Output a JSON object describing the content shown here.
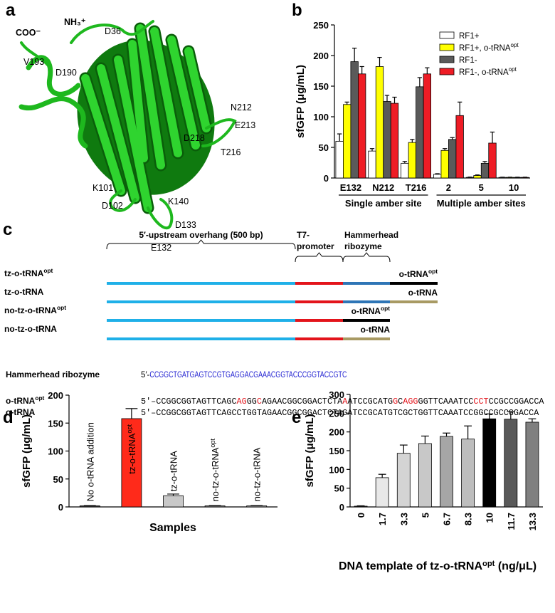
{
  "panel_labels": [
    "a",
    "b",
    "c",
    "d",
    "e"
  ],
  "panel_a": {
    "termini": [
      "COO⁻",
      "NH₃⁺"
    ],
    "residues": [
      {
        "label": "D36",
        "color": "#1c1cd0"
      },
      {
        "label": "V193",
        "color": "#e020c8"
      },
      {
        "label": "D190",
        "color": "#1c1cd0"
      },
      {
        "label": "N212",
        "color": "#d81e1e"
      },
      {
        "label": "E213",
        "color": "#1c1cd0"
      },
      {
        "label": "D218",
        "color": "#e020c8"
      },
      {
        "label": "T216",
        "color": "#d81e1e"
      },
      {
        "label": "K101",
        "color": "#1c1cd0"
      },
      {
        "label": "K140",
        "color": "#e020c8"
      },
      {
        "label": "D102",
        "color": "#e020c8"
      },
      {
        "label": "D133",
        "color": "#e020c8"
      },
      {
        "label": "E132",
        "color": "#d81e1e"
      }
    ]
  },
  "chart_data": [
    {
      "type": "bar",
      "ylabel": "sfGFP (μg/mL)",
      "categories": [
        "E132",
        "N212",
        "T216",
        "2",
        "5",
        "10"
      ],
      "group_labels": [
        "Single amber site",
        "Multiple amber sites"
      ],
      "series": [
        {
          "name": [
            "RF1+"
          ],
          "color": "#ffffff",
          "values": [
            60,
            44,
            24,
            6,
            1,
            1
          ],
          "errors": [
            12,
            4,
            3,
            1,
            0.5,
            0.3
          ]
        },
        {
          "name": [
            "RF1+, o-tRNA",
            "opt"
          ],
          "color": "#ffff00",
          "values": [
            120,
            182,
            58,
            45,
            4,
            1
          ],
          "errors": [
            4,
            15,
            5,
            3,
            1,
            0.3
          ]
        },
        {
          "name": [
            "RF1-"
          ],
          "color": "#5a5a5a",
          "values": [
            190,
            125,
            149,
            63,
            24,
            1
          ],
          "errors": [
            22,
            10,
            15,
            3,
            3,
            0.3
          ]
        },
        {
          "name": [
            "RF1-, o-tRNA",
            "opt"
          ],
          "color": "#ee1c25",
          "values": [
            170,
            122,
            170,
            102,
            57,
            1
          ],
          "errors": [
            12,
            10,
            10,
            22,
            18,
            0.3
          ]
        }
      ],
      "ylim": [
        0,
        250
      ],
      "yticks": [
        0,
        50,
        100,
        150,
        200,
        250
      ],
      "legend": "upper right"
    },
    {
      "type": "bar",
      "ylabel": "sfGFP (μg/mL)",
      "xlabel": "Samples",
      "categories": [
        [
          "No o-tRNA addition"
        ],
        [
          "tz-o-tRNA",
          "opt"
        ],
        [
          "tz-o-tRNA"
        ],
        [
          "no-tz-o-tRNA",
          "opt"
        ],
        [
          "no-tz-o-tRNA"
        ]
      ],
      "values": [
        2,
        158,
        20,
        2,
        2
      ],
      "errors": [
        0.5,
        18,
        3,
        0.5,
        0.5
      ],
      "colors": [
        "#404040",
        "#ff2a1a",
        "#c8c8c8",
        "#808080",
        "#a0a0a0"
      ],
      "ylim": [
        0,
        200
      ],
      "yticks": [
        0,
        50,
        100,
        150,
        200
      ]
    },
    {
      "type": "bar",
      "ylabel": "sfGFP (μg/mL)",
      "xlabel": [
        "DNA template of tz-o-tRNA",
        "opt",
        " (ng/μL)"
      ],
      "categories": [
        "0",
        "1.7",
        "3.3",
        "5",
        "6.7",
        "8.3",
        "10",
        "11.7",
        "13.3"
      ],
      "values": [
        2,
        78,
        143,
        169,
        188,
        181,
        235,
        234,
        226
      ],
      "errors": [
        1,
        9,
        22,
        20,
        9,
        35,
        13,
        20,
        9
      ],
      "colors": [
        "#404040",
        "#e8e8e8",
        "#d4d4d4",
        "#c8c8c8",
        "#a6a6a6",
        "#bdbdbd",
        "#000000",
        "#595959",
        "#808080"
      ],
      "ylim": [
        0,
        300
      ],
      "yticks": [
        0,
        50,
        100,
        150,
        200,
        250,
        300
      ]
    }
  ],
  "panel_c": {
    "regions": [
      {
        "label_lines": [
          "5′-upstream overhang (500 bp)"
        ],
        "color": "#1fb0e8"
      },
      {
        "label_lines": [
          "T7-",
          "promoter"
        ],
        "color": "#e3141b"
      },
      {
        "label_lines": [
          "Hammerhead",
          "ribozyme"
        ],
        "color": "#2e75b6"
      }
    ],
    "constructs": [
      {
        "name": [
          "tz-o-tRNA",
          "opt"
        ],
        "name_color": "#e3141b",
        "ribozyme": true,
        "trna": [
          "o-tRNA",
          "opt"
        ],
        "trna_color": "#000000"
      },
      {
        "name": [
          "tz-o-tRNA"
        ],
        "name_color": "#000000",
        "ribozyme": true,
        "trna": [
          "o-tRNA"
        ],
        "trna_color": "#a89a63"
      },
      {
        "name": [
          "no-tz-o-tRNA",
          "opt"
        ],
        "name_color": "#000000",
        "ribozyme": false,
        "trna": [
          "o-tRNA",
          "opt"
        ],
        "trna_color": "#000000"
      },
      {
        "name": [
          "no-tz-o-tRNA"
        ],
        "name_color": "#000000",
        "ribozyme": false,
        "trna": [
          "o-tRNA"
        ],
        "trna_color": "#a89a63"
      }
    ],
    "ribozyme_sequence": {
      "name": "Hammerhead ribozyme",
      "prefix": "5′-",
      "sequence": "CCGGCTGATGAGTCCGTGAGGACGAAACGGTACCCGGTACCGTC",
      "color": "#1c1cd0"
    },
    "trna_sequences": [
      {
        "name": [
          "o-tRNA",
          "opt"
        ],
        "prefix": "5′–",
        "segments": [
          "CCGGCGGTAGTTCAGC",
          "AG",
          "GG",
          "C",
          "AGAACGGCGGACTCTA",
          "A",
          "ATCCGCATG",
          "G",
          "C",
          "AGG",
          "GGTTCAAATCC",
          "CCT",
          "CCGCCGGACCA"
        ]
      },
      {
        "name": [
          "o-tRNA"
        ],
        "prefix": "5′–",
        "segments": [
          "CCGGCGGTAGTTCAGCCTGGTAGAACGGCGGACTCTAGATCCGCATGTCGCTGGTTCAAATCCGGCCGCCGGACCA"
        ]
      }
    ],
    "highlight_color": "#e3141b"
  }
}
